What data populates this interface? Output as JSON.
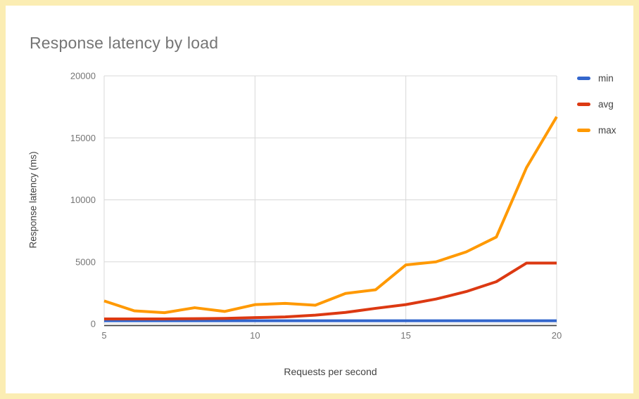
{
  "frame": {
    "border_color": "#fbedb3",
    "background": "#ffffff"
  },
  "axis": {
    "tick_color": "#757575",
    "title_color": "#424242",
    "grid_color": "#d8d8d8",
    "baseline_color": "#333333"
  },
  "chart_data": {
    "type": "line",
    "title": "Response latency by load",
    "xlabel": "Requests per second",
    "ylabel": "Response latency (ms)",
    "x": [
      5,
      6,
      7,
      8,
      9,
      10,
      11,
      12,
      13,
      14,
      15,
      16,
      17,
      18,
      19,
      20
    ],
    "series": [
      {
        "name": "min",
        "color": "#3366CC",
        "values": [
          250,
          250,
          250,
          250,
          250,
          250,
          250,
          250,
          250,
          250,
          250,
          250,
          250,
          250,
          250,
          250
        ]
      },
      {
        "name": "avg",
        "color": "#DC3912",
        "values": [
          400,
          400,
          400,
          420,
          440,
          500,
          560,
          700,
          920,
          1250,
          1550,
          2000,
          2600,
          3400,
          4900,
          4900
        ]
      },
      {
        "name": "max",
        "color": "#FF9900",
        "values": [
          1850,
          1050,
          900,
          1300,
          1000,
          1550,
          1650,
          1500,
          2450,
          2750,
          4750,
          5000,
          5800,
          7000,
          12600,
          16700
        ]
      }
    ],
    "xlim": [
      5,
      20
    ],
    "ylim": [
      0,
      20000
    ],
    "x_ticks": [
      5,
      10,
      15,
      20
    ],
    "y_ticks": [
      0,
      5000,
      10000,
      15000,
      20000
    ],
    "grid": true,
    "legend_position": "right"
  }
}
